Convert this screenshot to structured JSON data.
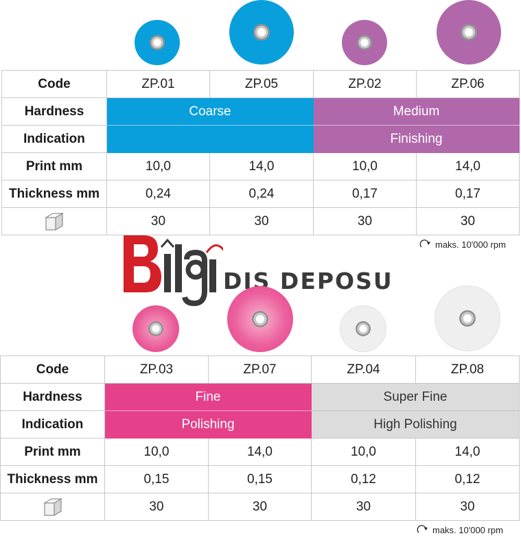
{
  "colors": {
    "coarse": "#099fdc",
    "medium": "#b068ab",
    "fine": "#e5418b",
    "superfine": "#dcdcdc",
    "logo_red": "#d42027"
  },
  "table_top": {
    "code_label": "Code",
    "codes": [
      "ZP.01",
      "ZP.05",
      "ZP.02",
      "ZP.06"
    ],
    "hardness_label": "Hardness",
    "hardness": [
      "Coarse",
      "Medium"
    ],
    "indication_label": "Indication",
    "indication": [
      "",
      "Finishing"
    ],
    "print_label": "Print mm",
    "print": [
      "10,0",
      "14,0",
      "10,0",
      "14,0"
    ],
    "thickness_label": "Thickness mm",
    "thickness": [
      "0,24",
      "0,24",
      "0,17",
      "0,17"
    ],
    "box_icon": "box-icon",
    "quantity": [
      "30",
      "30",
      "30",
      "30"
    ]
  },
  "table_bottom": {
    "code_label": "Code",
    "codes": [
      "ZP.03",
      "ZP.07",
      "ZP.04",
      "ZP.08"
    ],
    "hardness_label": "Hardness",
    "hardness": [
      "Fine",
      "Super Fine"
    ],
    "indication_label": "Indication",
    "indication": [
      "Polishing",
      "High Polishing"
    ],
    "print_label": "Print mm",
    "print": [
      "10,0",
      "14,0",
      "10,0",
      "14,0"
    ],
    "thickness_label": "Thickness mm",
    "thickness": [
      "0,15",
      "0,15",
      "0,12",
      "0,12"
    ],
    "box_icon": "box-icon",
    "quantity": [
      "30",
      "30",
      "30",
      "30"
    ]
  },
  "rpm_note": {
    "icon": "rotation-arrow-icon",
    "text_top": "maks. 10'000 rpm",
    "text_bottom": "maks. 10'000 rpm"
  },
  "logo": {
    "letters": "Bilgi",
    "wordmark": "DIŞ DEPOSU"
  }
}
